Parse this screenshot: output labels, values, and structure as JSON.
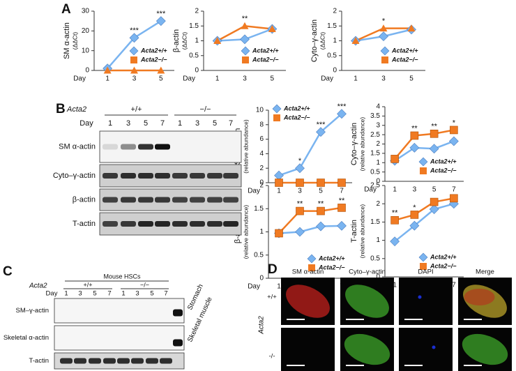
{
  "panel_labels": [
    "A",
    "B",
    "C",
    "D"
  ],
  "chart_data": [
    {
      "type": "line",
      "ylabel": "SM α-actin",
      "ylabel_sub": "(ΔΔCt)",
      "xlabel": "Day",
      "categories": [
        "1",
        "3",
        "5"
      ],
      "ylim": [
        0,
        30
      ],
      "yticks": [
        0,
        10,
        20,
        30
      ],
      "legend": "lower right",
      "series": [
        {
          "name": "Acta2+/+",
          "color": "#7ab4f0",
          "marker": "diamond",
          "values": [
            1,
            16.5,
            25
          ]
        },
        {
          "name": "Acta2−/−",
          "color": "#f07a22",
          "marker": "triangle",
          "values": [
            0,
            0,
            0
          ]
        }
      ],
      "significance": [
        null,
        "***",
        "***"
      ]
    },
    {
      "type": "line",
      "ylabel": "β-actin",
      "ylabel_sub": "(ΔΔCt)",
      "xlabel": "Day",
      "categories": [
        "1",
        "3",
        "5"
      ],
      "ylim": [
        0,
        2
      ],
      "yticks": [
        0,
        0.5,
        1,
        1.5,
        2
      ],
      "legend": "lower right",
      "series": [
        {
          "name": "Acta2+/+",
          "color": "#7ab4f0",
          "marker": "diamond",
          "values": [
            1,
            1.05,
            1.4
          ]
        },
        {
          "name": "Acta2−/−",
          "color": "#f07a22",
          "marker": "triangle",
          "values": [
            1,
            1.5,
            1.4
          ]
        }
      ],
      "significance": [
        null,
        "**",
        null
      ]
    },
    {
      "type": "line",
      "ylabel": "Cyto–γ-actin",
      "ylabel_sub": "(ΔΔCt)",
      "xlabel": "Day",
      "categories": [
        "1",
        "3",
        "5"
      ],
      "ylim": [
        0,
        2
      ],
      "yticks": [
        0,
        0.5,
        1,
        1.5,
        2
      ],
      "legend": "lower right",
      "series": [
        {
          "name": "Acta2+/+",
          "color": "#7ab4f0",
          "marker": "diamond",
          "values": [
            1,
            1.15,
            1.38
          ]
        },
        {
          "name": "Acta2−/−",
          "color": "#f07a22",
          "marker": "triangle",
          "values": [
            1,
            1.42,
            1.42
          ]
        }
      ],
      "significance": [
        null,
        "*",
        null
      ]
    },
    {
      "type": "line",
      "ylabel": "SM α-actin",
      "ylabel_sub": "(relative abundance)",
      "xlabel": "Day",
      "categories": [
        "1",
        "3",
        "5",
        "7"
      ],
      "ylim": [
        0,
        10
      ],
      "yticks": [
        0,
        2,
        4,
        6,
        8,
        10
      ],
      "legend": "upper left",
      "series": [
        {
          "name": "Acta2+/+",
          "color": "#7ab4f0",
          "marker": "diamond",
          "values": [
            1,
            2,
            7,
            9.5
          ]
        },
        {
          "name": "Acta2−/−",
          "color": "#f07a22",
          "marker": "square",
          "values": [
            0,
            0,
            0,
            0
          ]
        }
      ],
      "significance": [
        null,
        "*",
        "***",
        "***"
      ]
    },
    {
      "type": "line",
      "ylabel": "Cyto–γ-actin",
      "ylabel_sub": "(relative abundance)",
      "xlabel": "Day",
      "categories": [
        "1",
        "3",
        "5",
        "7"
      ],
      "ylim": [
        0,
        4
      ],
      "yticks": [
        0,
        0.5,
        1,
        1.5,
        2,
        2.5,
        3,
        3.5,
        4
      ],
      "legend": "lower right",
      "series": [
        {
          "name": "Acta2+/+",
          "color": "#7ab4f0",
          "marker": "diamond",
          "values": [
            1.1,
            1.8,
            1.75,
            2.15
          ]
        },
        {
          "name": "Acta2−/−",
          "color": "#f07a22",
          "marker": "square",
          "values": [
            1.2,
            2.45,
            2.55,
            2.75
          ]
        }
      ],
      "significance": [
        null,
        "**",
        "**",
        "*"
      ]
    },
    {
      "type": "line",
      "ylabel": "β-actin",
      "ylabel_sub": "(relative abundance)",
      "xlabel": "Day",
      "categories": [
        "1",
        "3",
        "5",
        "7"
      ],
      "ylim": [
        0,
        2
      ],
      "yticks": [
        0,
        0.5,
        1,
        1.5,
        2
      ],
      "legend": "lower right",
      "series": [
        {
          "name": "Acta2+/+",
          "color": "#7ab4f0",
          "marker": "diamond",
          "values": [
            0.97,
            1.0,
            1.12,
            1.13
          ]
        },
        {
          "name": "Acta2−/−",
          "color": "#f07a22",
          "marker": "square",
          "values": [
            0.97,
            1.45,
            1.45,
            1.52
          ]
        }
      ],
      "significance": [
        null,
        "**",
        "**",
        "**"
      ]
    },
    {
      "type": "line",
      "ylabel": "T-actin",
      "ylabel_sub": "(relative abundance)",
      "xlabel": "Day",
      "categories": [
        "1",
        "3",
        "5",
        "7"
      ],
      "ylim": [
        0,
        2.5
      ],
      "yticks": [
        0,
        0.5,
        1,
        1.5,
        2,
        2.5
      ],
      "legend": "lower right",
      "series": [
        {
          "name": "Acta2+/+",
          "color": "#7ab4f0",
          "marker": "diamond",
          "values": [
            0.97,
            1.4,
            1.85,
            2.0
          ]
        },
        {
          "name": "Acta2−/−",
          "color": "#f07a22",
          "marker": "square",
          "values": [
            1.55,
            1.7,
            2.05,
            2.15
          ]
        }
      ],
      "significance": [
        "**",
        "*",
        null,
        null
      ]
    }
  ],
  "blot_b": {
    "genotype_label": "Acta2",
    "groups": [
      "+/+",
      "−/−"
    ],
    "day_label": "Day",
    "days": [
      "1",
      "3",
      "5",
      "7",
      "1",
      "3",
      "5",
      "7"
    ],
    "rows": [
      "SM α-actin",
      "Cyto–γ-actin",
      "β-actin",
      "T-actin"
    ]
  },
  "blot_c": {
    "title": "Mouse HSCs",
    "genotype_label": "Acta2",
    "groups": [
      "+/+",
      "−/−"
    ],
    "day_label": "Day",
    "days": [
      "1",
      "3",
      "5",
      "7",
      "1",
      "3",
      "5",
      "7"
    ],
    "rows": [
      "SM–γ-actin",
      "Skeletal α-actin",
      "T-actin"
    ],
    "controls": [
      "Stomach",
      "Skeletal muscle"
    ]
  },
  "micrographs": {
    "columns": [
      "SM α-actin",
      "Cyto–γ-actin",
      "DAPI",
      "Merge"
    ],
    "rows": [
      "+/+",
      "-/-"
    ],
    "genotype_label": "Acta2"
  }
}
